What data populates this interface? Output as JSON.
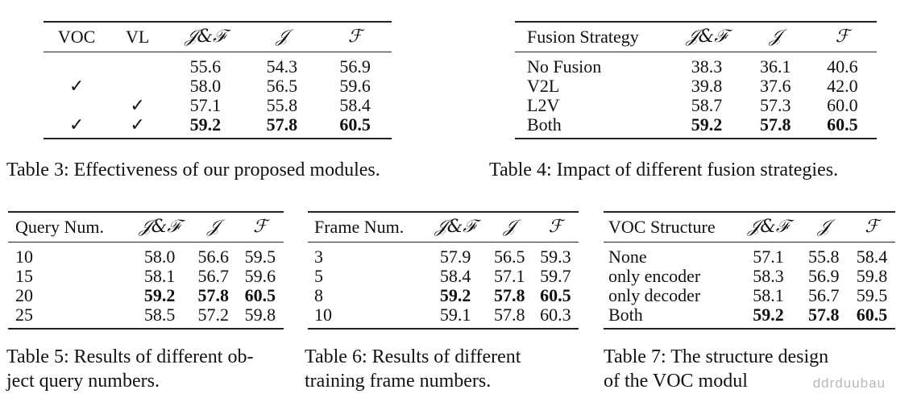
{
  "tables": {
    "t3": {
      "headers": [
        "VOC",
        "VL",
        "𝒥&ℱ",
        "𝒥",
        "ℱ"
      ],
      "rows": [
        {
          "voc": "",
          "vl": "",
          "jf": "55.6",
          "j": "54.3",
          "f": "56.9"
        },
        {
          "voc": "✓",
          "vl": "",
          "jf": "58.0",
          "j": "56.5",
          "f": "59.6"
        },
        {
          "voc": "",
          "vl": "✓",
          "jf": "57.1",
          "j": "55.8",
          "f": "58.4"
        },
        {
          "voc": "✓",
          "vl": "✓",
          "jf": "59.2",
          "j": "57.8",
          "f": "60.5"
        }
      ],
      "caption": "Table 3: Effectiveness of our proposed modules."
    },
    "t4": {
      "headers": [
        "Fusion Strategy",
        "𝒥&ℱ",
        "𝒥",
        "ℱ"
      ],
      "rows": [
        {
          "name": "No Fusion",
          "jf": "38.3",
          "j": "36.1",
          "f": "40.6"
        },
        {
          "name": "V2L",
          "jf": "39.8",
          "j": "37.6",
          "f": "42.0"
        },
        {
          "name": "L2V",
          "jf": "58.7",
          "j": "57.3",
          "f": "60.0"
        },
        {
          "name": "Both",
          "jf": "59.2",
          "j": "57.8",
          "f": "60.5"
        }
      ],
      "caption": "Table 4: Impact of different fusion strategies."
    },
    "t5": {
      "headers": [
        "Query Num.",
        "𝒥&ℱ",
        "𝒥",
        "ℱ"
      ],
      "rows": [
        {
          "name": "10",
          "jf": "58.0",
          "j": "56.6",
          "f": "59.5"
        },
        {
          "name": "15",
          "jf": "58.1",
          "j": "56.7",
          "f": "59.6"
        },
        {
          "name": "20",
          "jf": "59.2",
          "j": "57.8",
          "f": "60.5"
        },
        {
          "name": "25",
          "jf": "58.5",
          "j": "57.2",
          "f": "59.8"
        }
      ],
      "caption_line1": "Table 5: Results of different ob-",
      "caption_line2": "ject query numbers."
    },
    "t6": {
      "headers": [
        "Frame Num.",
        "𝒥&ℱ",
        "𝒥",
        "ℱ"
      ],
      "rows": [
        {
          "name": "3",
          "jf": "57.9",
          "j": "56.5",
          "f": "59.3"
        },
        {
          "name": "5",
          "jf": "58.4",
          "j": "57.1",
          "f": "59.7"
        },
        {
          "name": "8",
          "jf": "59.2",
          "j": "57.8",
          "f": "60.5"
        },
        {
          "name": "10",
          "jf": "59.1",
          "j": "57.8",
          "f": "60.3"
        }
      ],
      "caption_line1": "Table 6:  Results of different",
      "caption_line2": "training frame numbers."
    },
    "t7": {
      "headers": [
        "VOC Structure",
        "𝒥&ℱ",
        "𝒥",
        "ℱ"
      ],
      "rows": [
        {
          "name": "None",
          "jf": "57.1",
          "j": "55.8",
          "f": "58.4"
        },
        {
          "name": "only encoder",
          "jf": "58.3",
          "j": "56.9",
          "f": "59.8"
        },
        {
          "name": "only decoder",
          "jf": "58.1",
          "j": "56.7",
          "f": "59.5"
        },
        {
          "name": "Both",
          "jf": "59.2",
          "j": "57.8",
          "f": "60.5"
        }
      ],
      "caption_line1": "Table 7:  The structure design",
      "caption_line2": "of the VOC modul"
    }
  },
  "watermark": "ddrduubau"
}
